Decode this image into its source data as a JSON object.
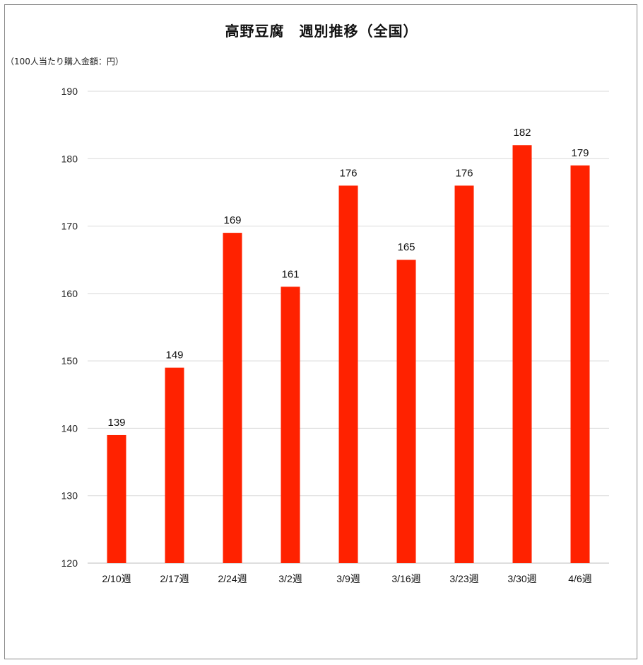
{
  "chart_data": {
    "type": "bar",
    "title": "高野豆腐　週別推移（全国）",
    "ylabel": "（100人当たり購入金額：円）",
    "xlabel": "",
    "categories": [
      "2/10週",
      "2/17週",
      "2/24週",
      "3/2週",
      "3/9週",
      "3/16週",
      "3/23週",
      "3/30週",
      "4/6週"
    ],
    "values": [
      139,
      149,
      169,
      161,
      176,
      165,
      176,
      182,
      179
    ],
    "data_labels": [
      "139",
      "149",
      "169",
      "161",
      "176",
      "165",
      "176",
      "182",
      "179"
    ],
    "ylim": [
      120,
      190
    ],
    "yticks": [
      120,
      130,
      140,
      150,
      160,
      170,
      180,
      190
    ],
    "ytick_labels": [
      "120",
      "130",
      "140",
      "150",
      "160",
      "170",
      "180",
      "190"
    ],
    "grid": true,
    "legend": "none",
    "bar_color": "#ff2200",
    "grid_color": "#d9d9d9"
  }
}
